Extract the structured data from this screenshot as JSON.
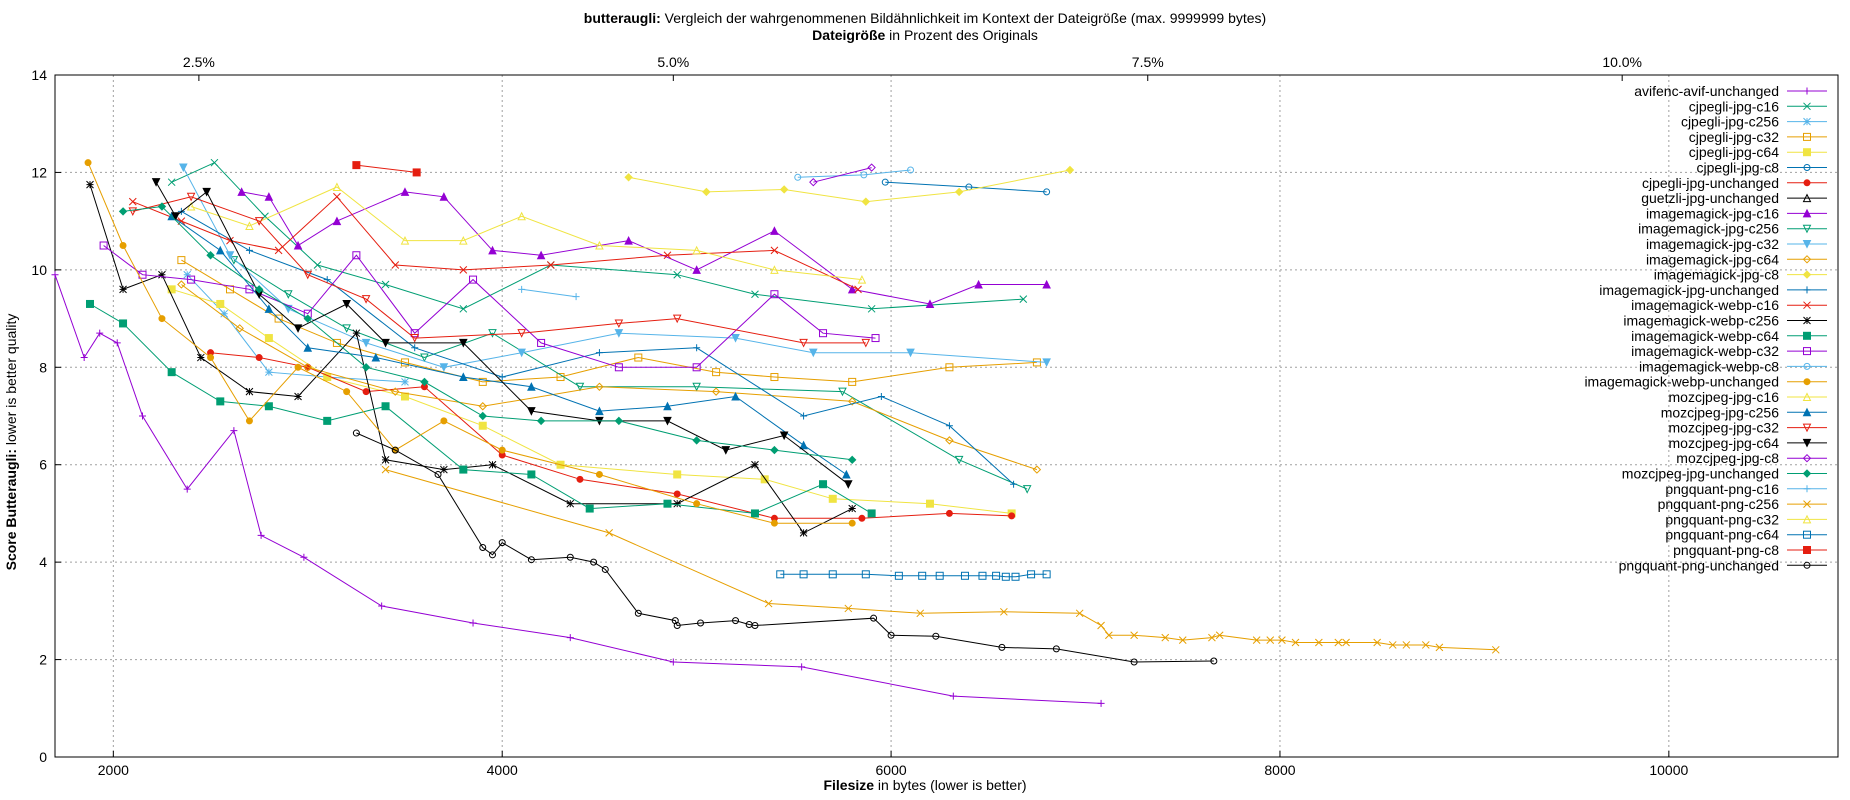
{
  "chart_data": {
    "type": "line",
    "title_bold": "butteraugli:",
    "title_rest": " Vergleich der wahrgenommenen Bildähnlichkeit im Kontext der Dateigröße (max. 9999999 bytes)",
    "subtitle_bold": "Dateigröße",
    "subtitle_rest": " in Prozent des Originals",
    "xlabel_bold": "Filesize",
    "xlabel_rest": " in bytes (lower is better)",
    "ylabel_bold": "Score Butteraugli:",
    "ylabel_rest": " lower is better quality",
    "xlim": [
      1700,
      10870
    ],
    "ylim": [
      0,
      14
    ],
    "x_ticks": [
      2000,
      4000,
      6000,
      8000,
      10000
    ],
    "y_ticks": [
      0,
      2,
      4,
      6,
      8,
      10,
      12,
      14
    ],
    "x2_ticks": [
      {
        "label": "2.5%",
        "x": 2440
      },
      {
        "label": "5.0%",
        "x": 4880
      },
      {
        "label": "7.5%",
        "x": 7320
      },
      {
        "label": "10.0%",
        "x": 9760
      }
    ],
    "grid": true,
    "legend_position": "right",
    "series": [
      {
        "name": "avifenc-avif-unchanged",
        "color": "#9400d3",
        "marker": "plus",
        "x": [
          1700,
          1850,
          1930,
          2020,
          2150,
          2380,
          2620,
          2760,
          2980,
          3380,
          3850,
          4350,
          4880,
          5540,
          6320,
          7080
        ],
        "y": [
          9.9,
          8.2,
          8.7,
          8.5,
          7.0,
          5.5,
          6.7,
          4.55,
          4.1,
          3.1,
          2.75,
          2.45,
          1.95,
          1.85,
          1.25,
          1.1
        ]
      },
      {
        "name": "cjpegli-jpg-c16",
        "color": "#009e73",
        "marker": "x",
        "x": [
          2300,
          2520,
          2780,
          3050,
          3400,
          3800,
          4250,
          4900,
          5300,
          5900,
          6680
        ],
        "y": [
          11.8,
          12.2,
          11.1,
          10.1,
          9.7,
          9.2,
          10.1,
          9.9,
          9.5,
          9.2,
          9.4
        ]
      },
      {
        "name": "cjpegli-jpg-c256",
        "color": "#56b4e9",
        "marker": "star",
        "x": [
          2380,
          2570,
          2800,
          3100,
          3500
        ],
        "y": [
          9.9,
          9.1,
          7.9,
          7.8,
          7.7
        ]
      },
      {
        "name": "cjpegli-jpg-c32",
        "color": "#e69f00",
        "marker": "square",
        "x": [
          2350,
          2600,
          2850,
          3150,
          3500,
          3900,
          4300,
          4700,
          5100,
          5400,
          5800,
          6300,
          6750
        ],
        "y": [
          10.2,
          9.6,
          9.0,
          8.5,
          8.1,
          7.7,
          7.8,
          8.2,
          7.9,
          7.8,
          7.7,
          8.0,
          8.1
        ]
      },
      {
        "name": "cjpegli-jpg-c64",
        "color": "#f0e442",
        "marker": "square-fill",
        "x": [
          2300,
          2550,
          2800,
          3100,
          3500,
          3900,
          4300,
          4900,
          5350,
          5700,
          6200,
          6620
        ],
        "y": [
          9.6,
          9.3,
          8.6,
          7.8,
          7.4,
          6.8,
          6.0,
          5.8,
          5.7,
          5.3,
          5.2,
          5.0
        ]
      },
      {
        "name": "cjpegli-jpg-c8",
        "color": "#0072b2",
        "marker": "circle",
        "x": [
          5970,
          6400,
          6800
        ],
        "y": [
          11.8,
          11.7,
          11.6
        ]
      },
      {
        "name": "cjpegli-jpg-unchanged",
        "color": "#e51e10",
        "marker": "circle-fill",
        "x": [
          2500,
          2750,
          3000,
          3300,
          3600,
          4000,
          4400,
          4900,
          5400,
          5850,
          6300,
          6620
        ],
        "y": [
          8.3,
          8.2,
          8.0,
          7.5,
          7.6,
          6.2,
          5.7,
          5.4,
          4.9,
          4.9,
          5.0,
          4.95
        ]
      },
      {
        "name": "guetzli-jpg-unchanged",
        "color": "#000000",
        "marker": "triangle",
        "x": [],
        "y": []
      },
      {
        "name": "imagemagick-jpg-c16",
        "color": "#9400d3",
        "marker": "triangle-fill",
        "x": [
          2660,
          2800,
          2950,
          3150,
          3500,
          3700,
          3950,
          4200,
          4650,
          5000,
          5400,
          5800,
          6200,
          6450,
          6800
        ],
        "y": [
          11.6,
          11.5,
          10.5,
          11.0,
          11.6,
          11.5,
          10.4,
          10.3,
          10.6,
          10.0,
          10.8,
          9.6,
          9.3,
          9.7,
          9.7
        ]
      },
      {
        "name": "imagemagick-jpg-c256",
        "color": "#009e73",
        "marker": "triangle-down",
        "x": [
          2620,
          2900,
          3200,
          3600,
          3950,
          4400,
          5000,
          5750,
          6350,
          6700
        ],
        "y": [
          10.2,
          9.5,
          8.8,
          8.2,
          8.7,
          7.6,
          7.6,
          7.5,
          6.1,
          5.5
        ]
      },
      {
        "name": "imagemagick-jpg-c32",
        "color": "#56b4e9",
        "marker": "triangle-down-fill",
        "x": [
          2360,
          2600,
          2900,
          3300,
          3700,
          4100,
          4600,
          5200,
          5600,
          6100,
          6800
        ],
        "y": [
          12.1,
          10.3,
          9.2,
          8.5,
          8.0,
          8.3,
          8.7,
          8.6,
          8.3,
          8.3,
          8.1
        ]
      },
      {
        "name": "imagemagick-jpg-c64",
        "color": "#e69f00",
        "marker": "diamond",
        "x": [
          2350,
          2650,
          3000,
          3450,
          3900,
          4500,
          5100,
          5800,
          6300,
          6750
        ],
        "y": [
          9.7,
          8.8,
          8.0,
          7.5,
          7.2,
          7.6,
          7.5,
          7.3,
          6.5,
          5.9
        ]
      },
      {
        "name": "imagemagick-jpg-c8",
        "color": "#f0e442",
        "marker": "diamond-fill",
        "x": [
          4650,
          5050,
          5450,
          5870,
          6350,
          6920
        ],
        "y": [
          11.9,
          11.6,
          11.65,
          11.4,
          11.6,
          12.05
        ]
      },
      {
        "name": "imagemagick-jpg-unchanged",
        "color": "#0072b2",
        "marker": "plus",
        "x": [
          2350,
          2700,
          3100,
          3550,
          4000,
          4500,
          5000,
          5550,
          5950,
          6300,
          6630
        ],
        "y": [
          11.2,
          10.4,
          9.8,
          8.4,
          7.8,
          8.3,
          8.4,
          7.0,
          7.4,
          6.8,
          5.6
        ]
      },
      {
        "name": "imagemagick-webp-c16",
        "color": "#e51e10",
        "marker": "x",
        "x": [
          2100,
          2350,
          2600,
          2850,
          3150,
          3450,
          3800,
          4250,
          4850,
          5400,
          5830
        ],
        "y": [
          11.4,
          11.0,
          10.6,
          10.4,
          11.5,
          10.1,
          10.0,
          10.1,
          10.3,
          10.4,
          9.6
        ]
      },
      {
        "name": "imagemagick-webp-c256",
        "color": "#000000",
        "marker": "star",
        "x": [
          1880,
          2050,
          2250,
          2450,
          2700,
          2950,
          3250,
          3400,
          3700,
          3950,
          4350,
          4900,
          5300,
          5550,
          5800
        ],
        "y": [
          11.75,
          9.6,
          9.9,
          8.2,
          7.5,
          7.4,
          8.7,
          6.1,
          5.9,
          6.0,
          5.2,
          5.2,
          6.0,
          4.6,
          5.1
        ]
      },
      {
        "name": "imagemagick-webp-c64",
        "color": "#009e73",
        "marker": "square-fill",
        "x": [
          1880,
          2050,
          2300,
          2550,
          2800,
          3100,
          3400,
          3800,
          4150,
          4450,
          4850,
          5300,
          5650,
          5900
        ],
        "y": [
          9.3,
          8.9,
          7.9,
          7.3,
          7.2,
          6.9,
          7.2,
          5.9,
          5.8,
          5.1,
          5.2,
          5.0,
          5.6,
          5.0
        ]
      },
      {
        "name": "imagemagick-webp-c32",
        "color": "#9400d3",
        "marker": "square",
        "x": [
          1950,
          2150,
          2400,
          2700,
          3000,
          3250,
          3550,
          3850,
          4200,
          4600,
          5000,
          5400,
          5650,
          5920
        ],
        "y": [
          10.5,
          9.9,
          9.8,
          9.6,
          9.1,
          10.3,
          8.7,
          9.8,
          8.5,
          8.0,
          8.0,
          9.5,
          8.7,
          8.6
        ]
      },
      {
        "name": "imagemagick-webp-c8",
        "color": "#56b4e9",
        "marker": "circle",
        "x": [
          5520,
          5860,
          6100
        ],
        "y": [
          11.9,
          11.95,
          12.05
        ]
      },
      {
        "name": "imagemagick-webp-unchanged",
        "color": "#e69f00",
        "marker": "circle-fill",
        "x": [
          1870,
          2050,
          2250,
          2500,
          2700,
          2950,
          3200,
          3450,
          3700,
          4000,
          4500,
          5000,
          5400,
          5800
        ],
        "y": [
          12.2,
          10.5,
          9.0,
          8.2,
          6.9,
          8.0,
          7.5,
          6.3,
          6.9,
          6.3,
          5.8,
          5.2,
          4.8,
          4.8
        ]
      },
      {
        "name": "mozcjpeg-jpg-c16",
        "color": "#f0e442",
        "marker": "triangle",
        "x": [
          2400,
          2700,
          3150,
          3500,
          3800,
          4100,
          4500,
          5000,
          5400,
          5850
        ],
        "y": [
          11.3,
          10.9,
          11.7,
          10.6,
          10.6,
          11.1,
          10.5,
          10.4,
          10.0,
          9.8
        ]
      },
      {
        "name": "mozcjpeg-jpg-c256",
        "color": "#0072b2",
        "marker": "triangle-fill",
        "x": [
          2300,
          2550,
          2800,
          3000,
          3350,
          3800,
          4150,
          4500,
          4850,
          5200,
          5550,
          5770
        ],
        "y": [
          11.1,
          10.4,
          9.2,
          8.4,
          8.2,
          7.8,
          7.6,
          7.1,
          7.2,
          7.4,
          6.4,
          5.8
        ]
      },
      {
        "name": "mozcjpeg-jpg-c32",
        "color": "#e51e10",
        "marker": "triangle-down",
        "x": [
          2100,
          2400,
          2750,
          3000,
          3300,
          3550,
          4100,
          4600,
          4900,
          5550,
          5870
        ],
        "y": [
          11.2,
          11.5,
          11.0,
          9.9,
          9.4,
          8.6,
          8.7,
          8.9,
          9.0,
          8.5,
          8.5
        ]
      },
      {
        "name": "mozcjpeg-jpg-c64",
        "color": "#000000",
        "marker": "triangle-down-fill",
        "x": [
          2220,
          2320,
          2480,
          2750,
          2950,
          3200,
          3400,
          3800,
          4150,
          4500,
          4850,
          5150,
          5450,
          5780
        ],
        "y": [
          11.8,
          11.1,
          11.6,
          9.5,
          8.8,
          9.3,
          8.5,
          8.5,
          7.1,
          6.9,
          6.9,
          6.3,
          6.6,
          5.6
        ]
      },
      {
        "name": "mozcjpeg-jpg-c8",
        "color": "#9400d3",
        "marker": "diamond",
        "x": [
          5600,
          5900
        ],
        "y": [
          11.8,
          12.1
        ]
      },
      {
        "name": "mozcjpeg-jpg-unchanged",
        "color": "#009e73",
        "marker": "diamond-fill",
        "x": [
          2050,
          2250,
          2500,
          2750,
          3000,
          3300,
          3600,
          3900,
          4200,
          4600,
          5000,
          5400,
          5800
        ],
        "y": [
          11.2,
          11.3,
          10.3,
          9.6,
          9.0,
          8.0,
          7.7,
          7.0,
          6.9,
          6.9,
          6.5,
          6.3,
          6.1
        ]
      },
      {
        "name": "pngquant-png-c16",
        "color": "#56b4e9",
        "marker": "plus",
        "x": [
          4100,
          4380
        ],
        "y": [
          9.6,
          9.45
        ]
      },
      {
        "name": "pngquant-png-c256",
        "color": "#e69f00",
        "marker": "x",
        "x": [
          3400,
          4550,
          5370,
          5780,
          6150,
          6580,
          6970,
          7080,
          7120,
          7250,
          7410,
          7500,
          7650,
          7690,
          7880,
          7950,
          8010,
          8080,
          8200,
          8300,
          8340,
          8500,
          8580,
          8650,
          8750,
          8820,
          9110
        ],
        "y": [
          5.9,
          4.6,
          3.15,
          3.05,
          2.95,
          2.98,
          2.95,
          2.7,
          2.5,
          2.5,
          2.45,
          2.4,
          2.45,
          2.5,
          2.4,
          2.4,
          2.4,
          2.35,
          2.35,
          2.35,
          2.35,
          2.35,
          2.3,
          2.3,
          2.3,
          2.25,
          2.2
        ]
      },
      {
        "name": "pngquant-png-c32",
        "color": "#f0e442",
        "marker": "triangle",
        "x": [],
        "y": []
      },
      {
        "name": "pngquant-png-c64",
        "color": "#0072b2",
        "marker": "square",
        "x": [
          5430,
          5550,
          5700,
          5870,
          6040,
          6160,
          6250,
          6380,
          6470,
          6540,
          6590,
          6640,
          6720,
          6800
        ],
        "y": [
          3.75,
          3.75,
          3.75,
          3.75,
          3.72,
          3.72,
          3.72,
          3.72,
          3.72,
          3.72,
          3.7,
          3.7,
          3.75,
          3.75
        ]
      },
      {
        "name": "pngquant-png-c8",
        "color": "#e51e10",
        "marker": "square-fill",
        "x": [
          3250,
          3560
        ],
        "y": [
          12.15,
          12.0
        ]
      },
      {
        "name": "pngquant-png-unchanged",
        "color": "#000000",
        "marker": "circle",
        "x": [
          3250,
          3450,
          3670,
          3900,
          3950,
          4000,
          4150,
          4350,
          4470,
          4530,
          4700,
          4890,
          4900,
          5020,
          5200,
          5270,
          5300,
          5910,
          6000,
          6230,
          6570,
          6850,
          7250,
          7660
        ],
        "y": [
          6.65,
          6.3,
          5.8,
          4.3,
          4.15,
          4.4,
          4.05,
          4.1,
          4.0,
          3.85,
          2.95,
          2.8,
          2.7,
          2.75,
          2.8,
          2.72,
          2.7,
          2.85,
          2.5,
          2.48,
          2.25,
          2.22,
          1.95,
          1.97
        ]
      }
    ]
  }
}
